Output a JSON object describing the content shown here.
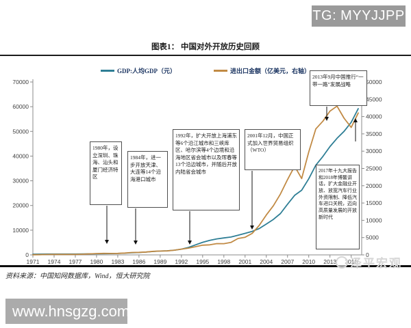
{
  "badge": {
    "text": "TG: MYYJJPP"
  },
  "figure": {
    "title": "图表1：  中国对外开放历史回顾"
  },
  "legend": [
    {
      "label": "GDP:人均GDP（元）",
      "color": "#2e7e95"
    },
    {
      "label": "进出口金额（亿美元，右轴）",
      "color": "#c18a44"
    }
  ],
  "annotations": [
    {
      "text": "1980年，设立深圳、珠海、汕头和厦门经济特区"
    },
    {
      "text": "1984年，进一步开放天津、大连等14个沿海港口城市"
    },
    {
      "text": "1992年，扩大开放上海浦东等6个沿江城市和三峡库区、哈尔滨等4个边境和沿海地区省会城市以及珲春等13个沿边城市，并随后开放内陆省会城市"
    },
    {
      "text": "2001年12月，中国正式加入世界贸易组织（WTO）"
    },
    {
      "text": "2013年9月中国推行“一带一路”发展战略"
    },
    {
      "text": "2017年十九大报告和2018年博鳌讲话，扩大金融业开放、放宽汽车行业外资限制、降低汽车进口关税，迈向高质量发展的开放新时代"
    }
  ],
  "source": "资料来源：中国知网数据库，Wind，恒大研究院",
  "watermark": "泽平宏观",
  "footer_site": "www.hnsgzg.com",
  "chart_data": {
    "type": "line",
    "title": "中国对外开放历史回顾",
    "x": [
      1971,
      1972,
      1973,
      1974,
      1975,
      1976,
      1977,
      1978,
      1979,
      1980,
      1981,
      1982,
      1983,
      1984,
      1985,
      1986,
      1987,
      1988,
      1989,
      1990,
      1991,
      1992,
      1993,
      1994,
      1995,
      1996,
      1997,
      1998,
      1999,
      2000,
      2001,
      2002,
      2003,
      2004,
      2005,
      2006,
      2007,
      2008,
      2009,
      2010,
      2011,
      2012,
      2013,
      2014,
      2015,
      2016,
      2017
    ],
    "series": [
      {
        "name": "GDP:人均GDP（元）",
        "axis": "left",
        "color": "#2e7e95",
        "values": [
          288,
          299,
          325,
          329,
          343,
          330,
          345,
          385,
          423,
          468,
          497,
          533,
          588,
          702,
          866,
          973,
          1123,
          1378,
          1536,
          1663,
          1912,
          2334,
          3027,
          4081,
          5091,
          5898,
          6481,
          6860,
          7229,
          7942,
          8717,
          9506,
          10666,
          12487,
          14368,
          16738,
          20505,
          24100,
          26180,
          30808,
          36302,
          39874,
          43852,
          47203,
          50028,
          53680,
          59201
        ]
      },
      {
        "name": "进出口金额（亿美元，右轴）",
        "axis": "right",
        "color": "#c18a44",
        "values": [
          48,
          63,
          110,
          145,
          147,
          134,
          148,
          206,
          293,
          381,
          440,
          416,
          436,
          535,
          696,
          738,
          826,
          1028,
          1116,
          1154,
          1357,
          1655,
          1957,
          2366,
          2809,
          2898,
          3252,
          3239,
          3606,
          4743,
          5097,
          6208,
          8510,
          11546,
          14219,
          17604,
          21766,
          25633,
          22075,
          29740,
          36419,
          38671,
          41590,
          43030,
          39530,
          36856,
          41045
        ]
      }
    ],
    "left_axis": {
      "label": "GDP:人均GDP（元）",
      "min": 0,
      "max": 70000,
      "step": 10000,
      "ticks": [
        0,
        10000,
        20000,
        30000,
        40000,
        50000,
        60000,
        70000
      ]
    },
    "right_axis": {
      "label": "进出口金额（亿美元）",
      "min": 0,
      "max": 50000,
      "step": 5000,
      "ticks": [
        0,
        5000,
        10000,
        15000,
        20000,
        25000,
        30000,
        35000,
        40000,
        45000,
        50000
      ]
    },
    "x_ticks": [
      1971,
      1974,
      1977,
      1980,
      1983,
      1986,
      1989,
      1992,
      1995,
      1998,
      2001,
      2004,
      2007,
      2010,
      2013,
      2016
    ],
    "grid": false,
    "legend_position": "top"
  }
}
